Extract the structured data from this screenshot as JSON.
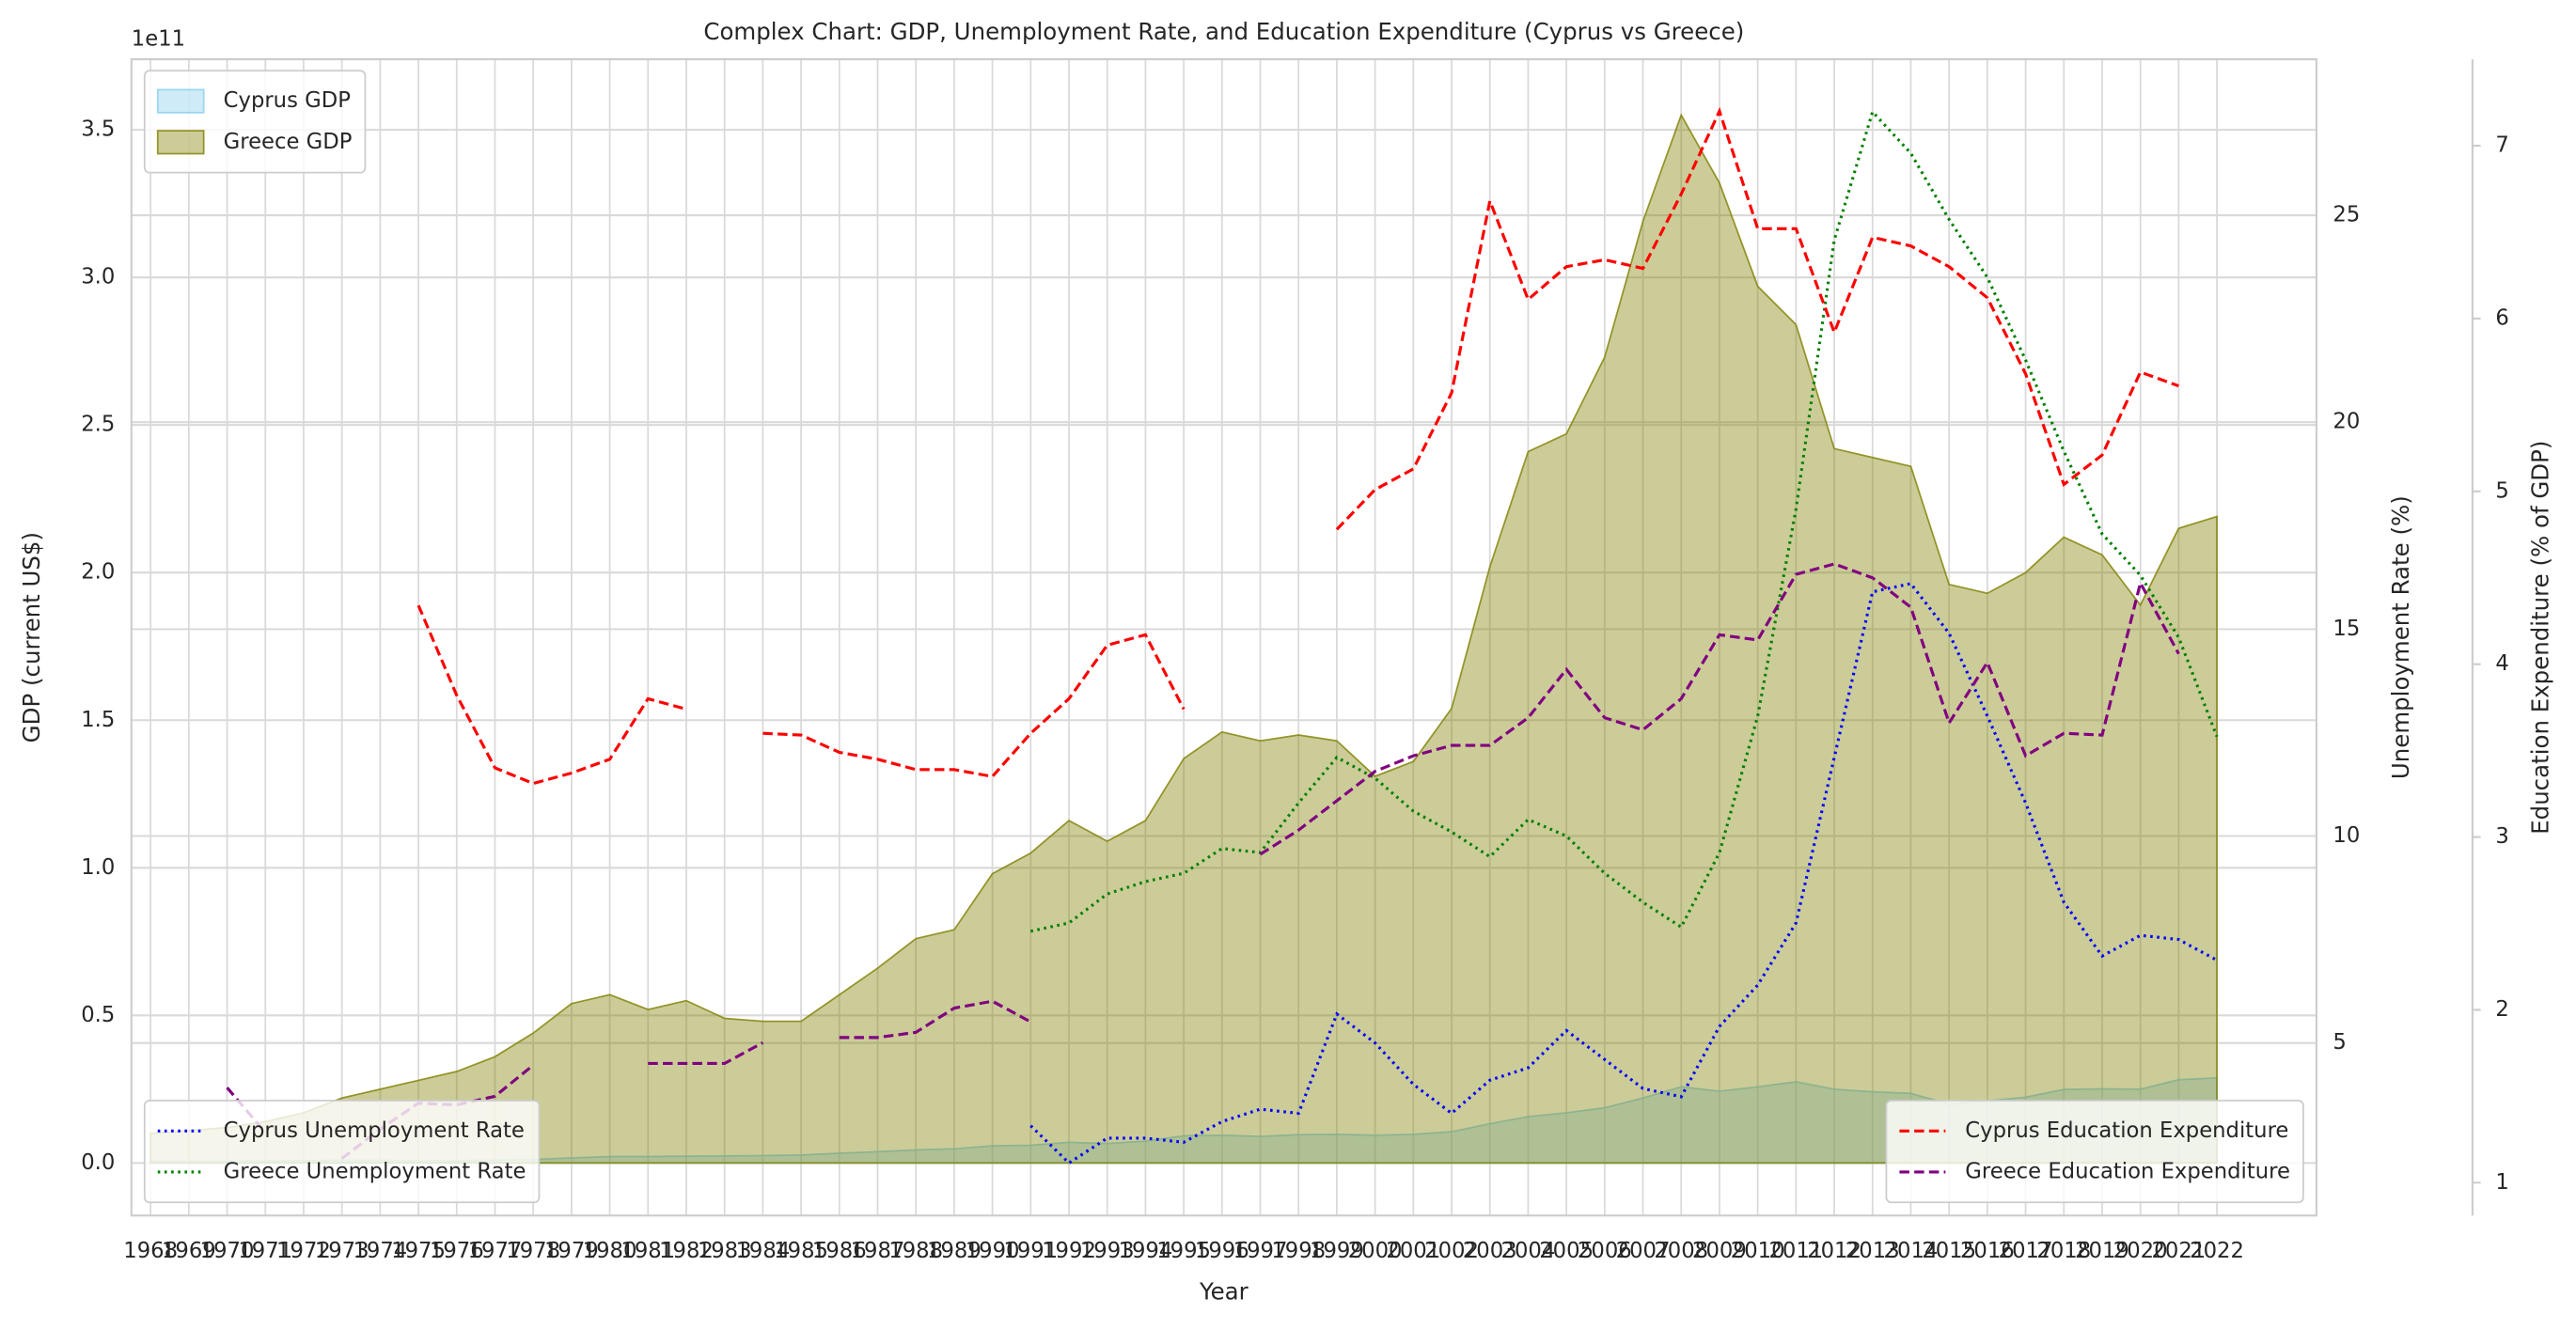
{
  "chart_data": {
    "type": "line",
    "title": "Complex Chart: GDP, Unemployment Rate, and Education Expenditure (Cyprus vs Greece)",
    "x_label": "Year",
    "y_label": "GDP (current US$)",
    "y_offset": "1e11",
    "y2_label": "Unemployment Rate (%)",
    "y3_label": "Education Expenditure (% of GDP)",
    "tick_colors": {
      "y": "#1f77b4",
      "y2": "#2ca02c",
      "y3": "#d62728"
    },
    "grid": true,
    "legend_loc": {
      "y": "upper left",
      "y2": "lower left",
      "y3": "lower right"
    },
    "xlim": [
      1967.5,
      2024.6
    ],
    "xticks": [
      1968,
      1969,
      1970,
      1971,
      1972,
      1973,
      1974,
      1975,
      1976,
      1977,
      1978,
      1979,
      1980,
      1981,
      1982,
      1983,
      1984,
      1985,
      1986,
      1987,
      1988,
      1989,
      1990,
      1991,
      1992,
      1993,
      1994,
      1995,
      1996,
      1997,
      1998,
      1999,
      2000,
      2001,
      2002,
      2003,
      2004,
      2005,
      2006,
      2007,
      2008,
      2009,
      2010,
      2011,
      2012,
      2013,
      2014,
      2015,
      2016,
      2017,
      2018,
      2019,
      2020,
      2021,
      2022
    ],
    "x": [
      1968,
      1969,
      1970,
      1971,
      1972,
      1973,
      1974,
      1975,
      1976,
      1977,
      1978,
      1979,
      1980,
      1981,
      1982,
      1983,
      1984,
      1985,
      1986,
      1987,
      1988,
      1989,
      1990,
      1991,
      1992,
      1993,
      1994,
      1995,
      1996,
      1997,
      1998,
      1999,
      2000,
      2001,
      2002,
      2003,
      2004,
      2005,
      2006,
      2007,
      2008,
      2009,
      2010,
      2011,
      2012,
      2013,
      2014,
      2015,
      2016,
      2017,
      2018,
      2019,
      2020,
      2021,
      2022
    ],
    "ylim": [
      -0.178,
      3.739
    ],
    "yticks": [
      {
        "value": 0,
        "label": "0.0"
      },
      0.5,
      {
        "value": 1,
        "label": "1.0"
      },
      1.5,
      {
        "value": 2,
        "label": "2.0"
      },
      2.5,
      {
        "value": 3,
        "label": "3.0"
      },
      3.5
    ],
    "y2lim": [
      0.83,
      28.77
    ],
    "y2ticks": [
      5,
      10,
      15,
      20,
      25
    ],
    "y3lim": [
      0.81,
      7.5
    ],
    "y3ticks": [
      1,
      2,
      3,
      4,
      5,
      6,
      7
    ],
    "series": [
      {
        "name": "Cyprus GDP",
        "type": "area",
        "axis": "y",
        "color": "#87ceeb",
        "opacity": 0.4,
        "values": [
          0.005,
          0.005,
          0.006,
          0.007,
          0.008,
          0.009,
          0.009,
          0.007,
          0.008,
          0.01,
          0.012,
          0.017,
          0.022,
          0.022,
          0.023,
          0.024,
          0.025,
          0.027,
          0.033,
          0.038,
          0.044,
          0.048,
          0.058,
          0.06,
          0.07,
          0.066,
          0.074,
          0.092,
          0.094,
          0.09,
          0.096,
          0.097,
          0.094,
          0.097,
          0.106,
          0.133,
          0.157,
          0.17,
          0.187,
          0.22,
          0.258,
          0.243,
          0.258,
          0.275,
          0.25,
          0.241,
          0.236,
          0.199,
          0.21,
          0.223,
          0.249,
          0.251,
          0.25,
          0.282,
          0.288
        ]
      },
      {
        "name": "Greece GDP",
        "type": "area",
        "axis": "y",
        "color": "#808000",
        "opacity": 0.4,
        "values": [
          0.1,
          0.11,
          0.12,
          0.14,
          0.17,
          0.22,
          0.25,
          0.28,
          0.31,
          0.36,
          0.44,
          0.54,
          0.57,
          0.52,
          0.55,
          0.49,
          0.48,
          0.48,
          0.57,
          0.66,
          0.76,
          0.79,
          0.98,
          1.05,
          1.16,
          1.09,
          1.16,
          1.37,
          1.46,
          1.43,
          1.45,
          1.43,
          1.31,
          1.36,
          1.54,
          2.02,
          2.41,
          2.47,
          2.73,
          3.19,
          3.55,
          3.32,
          2.97,
          2.84,
          2.42,
          2.39,
          2.36,
          1.96,
          1.93,
          2.0,
          2.12,
          2.06,
          1.89,
          2.15,
          2.19
        ]
      },
      {
        "name": "Cyprus Unemployment Rate",
        "type": "line",
        "style": "dotted",
        "axis": "y2",
        "color": "#0000ff",
        "values": [
          null,
          null,
          null,
          null,
          null,
          null,
          null,
          null,
          null,
          null,
          null,
          null,
          null,
          null,
          null,
          null,
          null,
          null,
          null,
          null,
          null,
          null,
          null,
          3.0,
          2.1,
          2.7,
          2.7,
          2.6,
          3.1,
          3.4,
          3.3,
          5.7,
          5.0,
          4.0,
          3.3,
          4.1,
          4.4,
          5.3,
          4.6,
          3.9,
          3.7,
          5.4,
          6.4,
          7.9,
          11.9,
          15.9,
          16.1,
          14.9,
          12.9,
          10.8,
          8.4,
          7.1,
          7.6,
          7.5,
          7.0
        ]
      },
      {
        "name": "Greece Unemployment Rate",
        "type": "line",
        "style": "dotted",
        "axis": "y2",
        "color": "#008000",
        "values": [
          null,
          null,
          null,
          null,
          null,
          null,
          null,
          null,
          null,
          null,
          null,
          null,
          null,
          null,
          null,
          null,
          null,
          null,
          null,
          null,
          null,
          null,
          null,
          7.7,
          7.9,
          8.6,
          8.9,
          9.1,
          9.7,
          9.6,
          10.8,
          11.9,
          11.4,
          10.6,
          10.1,
          9.5,
          10.4,
          10.0,
          9.1,
          8.4,
          7.8,
          9.6,
          12.9,
          17.9,
          24.4,
          27.5,
          26.5,
          24.9,
          23.5,
          21.5,
          19.3,
          17.3,
          16.3,
          14.8,
          12.4
        ]
      },
      {
        "name": "Cyprus Education Expenditure",
        "type": "line",
        "style": "dashed",
        "axis": "y3",
        "color": "#ff0000",
        "values": [
          null,
          null,
          null,
          null,
          null,
          null,
          null,
          4.34,
          3.82,
          3.4,
          3.31,
          3.37,
          3.45,
          3.8,
          3.74,
          null,
          3.6,
          3.59,
          3.49,
          3.45,
          3.39,
          3.39,
          3.35,
          3.6,
          3.8,
          4.11,
          4.17,
          3.74,
          null,
          null,
          null,
          4.78,
          5.01,
          5.13,
          5.57,
          6.68,
          6.11,
          6.3,
          6.34,
          6.29,
          6.72,
          7.2,
          6.52,
          6.52,
          5.92,
          6.47,
          6.42,
          6.3,
          6.12,
          5.68,
          5.04,
          5.21,
          5.69,
          5.61,
          null
        ]
      },
      {
        "name": "Greece Education Expenditure",
        "type": "line",
        "style": "dashed",
        "axis": "y3",
        "color": "#800080",
        "values": [
          null,
          null,
          1.55,
          1.29,
          null,
          1.14,
          1.31,
          1.46,
          1.45,
          1.5,
          1.68,
          null,
          null,
          1.69,
          1.69,
          1.69,
          1.81,
          null,
          1.84,
          1.84,
          1.87,
          2.01,
          2.05,
          1.93,
          null,
          null,
          null,
          null,
          null,
          2.9,
          3.04,
          3.21,
          3.38,
          3.47,
          3.53,
          3.53,
          3.69,
          3.97,
          3.69,
          3.62,
          3.8,
          4.17,
          4.14,
          4.52,
          4.58,
          4.5,
          4.33,
          3.66,
          4.01,
          3.47,
          3.6,
          3.59,
          4.47,
          4.06,
          null
        ]
      }
    ]
  }
}
